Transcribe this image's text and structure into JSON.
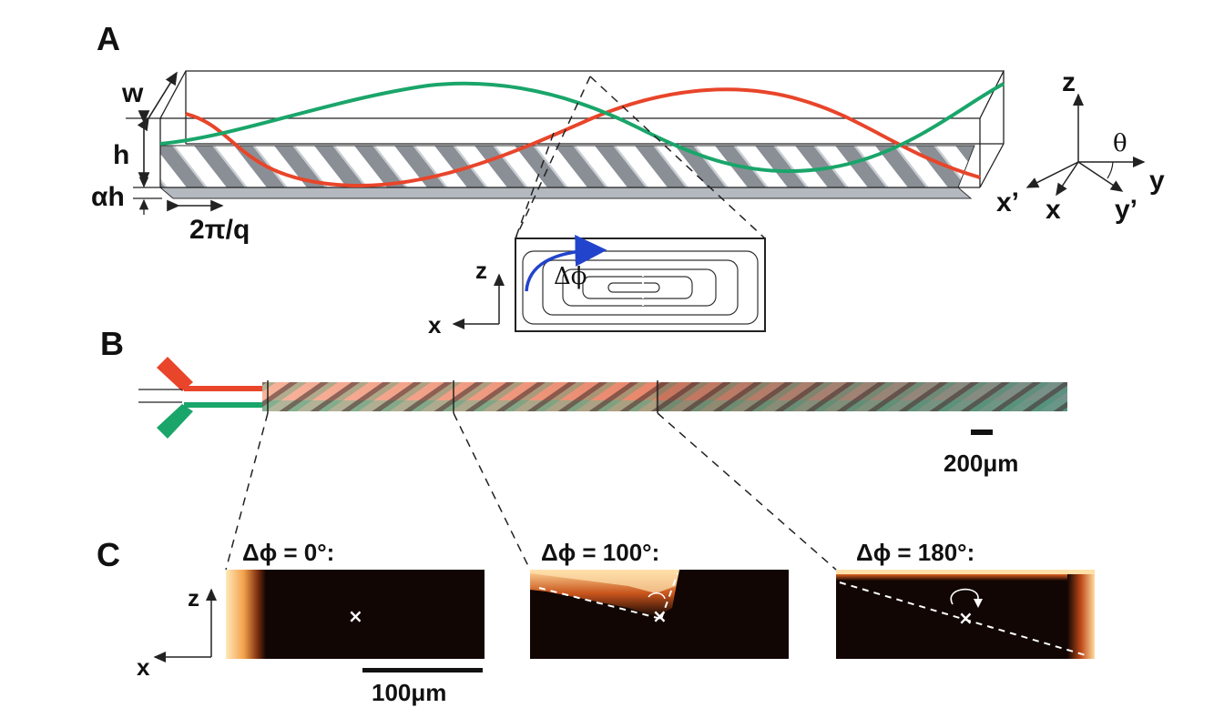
{
  "panels": {
    "a": {
      "letter": "A",
      "dim_w": "w",
      "dim_h": "h",
      "dim_alpha_h": "αh",
      "period": "2π/q",
      "axes": {
        "z": "z",
        "theta": "θ",
        "y": "y",
        "x_prime": "x’",
        "x": "x",
        "y_prime": "y’"
      },
      "inset": {
        "z": "z",
        "x": "x",
        "phase": "Δϕ"
      },
      "colors": {
        "stream_red": "#e8452a",
        "stream_green": "#1aa56a",
        "arrow_blue": "#2244cc",
        "grooves": "#c9ced3"
      }
    },
    "b": {
      "letter": "B",
      "scale_bar": "200μm"
    },
    "c": {
      "letter": "C",
      "axis_z": "z",
      "axis_x": "x",
      "images": [
        {
          "label": "Δϕ = 0°:"
        },
        {
          "label": "Δϕ = 100°:"
        },
        {
          "label": "Δϕ = 180°:"
        }
      ],
      "scale_bar": "100μm"
    }
  }
}
